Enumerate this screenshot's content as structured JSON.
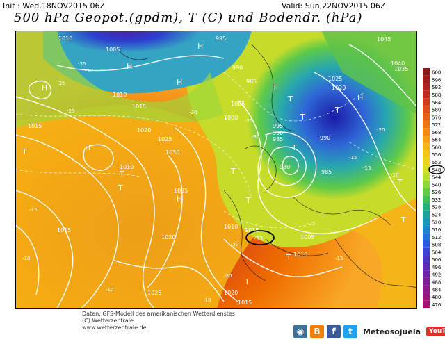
{
  "header": {
    "init": "Init : Wed,18NOV2015 06Z",
    "valid": "Valid: Sun,22NOV2015 06Z",
    "title": "500 hPa Geopot.(gpdm), T (C) und Bodendr. (hPa)"
  },
  "map": {
    "pressure_labels": [
      "1005",
      "1010",
      "1015",
      "1020",
      "1025",
      "1030",
      "1035",
      "995",
      "990",
      "985",
      "980",
      "1000",
      "1045",
      "1040"
    ],
    "temperature_labels": [
      "-10",
      "-15",
      "-20",
      "-25",
      "-30",
      "-35"
    ],
    "symbols": [
      "H",
      "T"
    ],
    "center_values": [
      "995",
      "990",
      "985",
      "980"
    ],
    "highlight_value": "-33"
  },
  "legend": {
    "levels": [
      "600",
      "596",
      "592",
      "588",
      "584",
      "580",
      "576",
      "572",
      "568",
      "564",
      "560",
      "556",
      "552",
      "548",
      "544",
      "540",
      "536",
      "532",
      "528",
      "524",
      "520",
      "516",
      "512",
      "508",
      "504",
      "500",
      "496",
      "492",
      "488",
      "484",
      "480",
      "476"
    ],
    "highlighted": "548",
    "colors": [
      "#8b1a1a",
      "#a01c1c",
      "#b21f1f",
      "#c42a1e",
      "#d33a1c",
      "#e04e17",
      "#e96012",
      "#f0740f",
      "#f5880f",
      "#f79f10",
      "#f6b512",
      "#f3c814",
      "#e9d41a",
      "#d8dc24",
      "#b6de2c",
      "#8fd636",
      "#63cc45",
      "#3ebf58",
      "#24b07a",
      "#1aa39a",
      "#1897b8",
      "#1a86cf",
      "#1f6fdc",
      "#2a58e0",
      "#3a42d8",
      "#4c33c8",
      "#5d28b8",
      "#6e20a8",
      "#7e1a98",
      "#8c168a",
      "#9a127c",
      "#a80e6e"
    ]
  },
  "footer": {
    "line1": "Daten: GFS-Modell des amerikanischen Wetterdienstes",
    "line2": "(C) Wetterzentrale",
    "line3": "www.wetterzentrale.de",
    "brand": "Meteosojuela",
    "youtube": "YouTube"
  }
}
